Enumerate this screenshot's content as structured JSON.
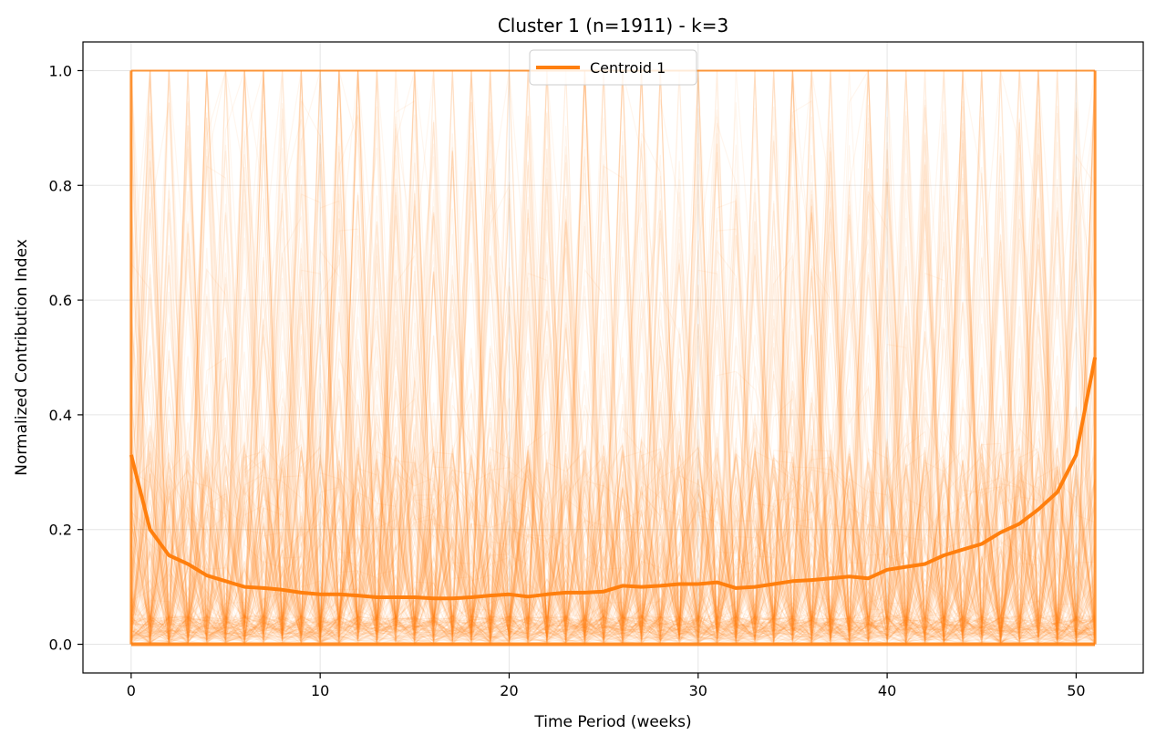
{
  "chart_data": {
    "type": "line",
    "title": "Cluster 1 (n=1911) - k=3",
    "xlabel": "Time Period (weeks)",
    "ylabel": "Normalized Contribution Index",
    "xlim": [
      -2.55,
      53.55
    ],
    "ylim": [
      -0.05,
      1.05
    ],
    "xticks": [
      0,
      10,
      20,
      30,
      40,
      50
    ],
    "yticks": [
      0.0,
      0.2,
      0.4,
      0.6,
      0.8,
      1.0
    ],
    "ytick_labels": [
      "0.0",
      "0.2",
      "0.4",
      "0.6",
      "0.8",
      "1.0"
    ],
    "grid": true,
    "legend_position": "top-center",
    "series_color": "#ff7f0e",
    "member_count": 1911,
    "series": [
      {
        "name": "Centroid 1",
        "x": [
          0,
          1,
          2,
          3,
          4,
          5,
          6,
          7,
          8,
          9,
          10,
          11,
          12,
          13,
          14,
          15,
          16,
          17,
          18,
          19,
          20,
          21,
          22,
          23,
          24,
          25,
          26,
          27,
          28,
          29,
          30,
          31,
          32,
          33,
          34,
          35,
          36,
          37,
          38,
          39,
          40,
          41,
          42,
          43,
          44,
          45,
          46,
          47,
          48,
          49,
          50,
          51
        ],
        "values": [
          0.33,
          0.2,
          0.155,
          0.14,
          0.12,
          0.11,
          0.1,
          0.098,
          0.095,
          0.09,
          0.087,
          0.087,
          0.085,
          0.082,
          0.082,
          0.082,
          0.08,
          0.08,
          0.082,
          0.085,
          0.087,
          0.083,
          0.087,
          0.09,
          0.09,
          0.092,
          0.102,
          0.1,
          0.102,
          0.105,
          0.105,
          0.108,
          0.098,
          0.1,
          0.105,
          0.11,
          0.112,
          0.115,
          0.118,
          0.115,
          0.13,
          0.135,
          0.14,
          0.155,
          0.165,
          0.175,
          0.195,
          0.21,
          0.235,
          0.265,
          0.33,
          0.5
        ]
      }
    ]
  }
}
